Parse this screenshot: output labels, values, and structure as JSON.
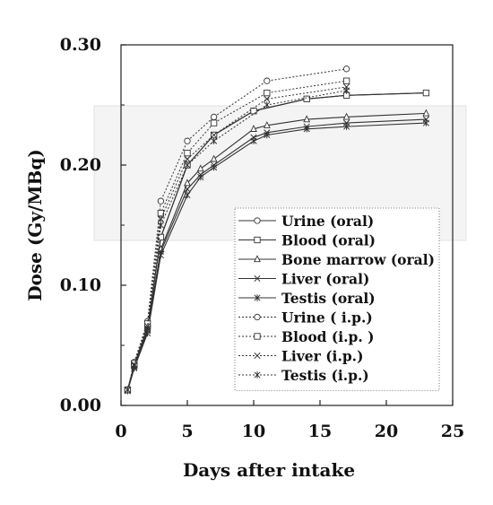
{
  "chart_data": {
    "type": "line",
    "xlabel": "Days after intake",
    "ylabel": "Dose (Gy/MBq)",
    "xlim": [
      0,
      25
    ],
    "ylim": [
      0,
      0.3
    ],
    "x_ticks": [
      "0",
      "5",
      "10",
      "15",
      "20",
      "25"
    ],
    "y_ticks": [
      "0.00",
      "0.10",
      "0.20",
      "0.30"
    ],
    "legend_position": "right-center",
    "grid": false,
    "series": [
      {
        "name": "Urine (oral)",
        "style": "solid",
        "marker": "circle",
        "x": [
          0.5,
          1,
          2,
          3,
          5,
          7,
          10,
          14,
          17,
          23
        ],
        "y": [
          0.013,
          0.034,
          0.065,
          0.14,
          0.2,
          0.225,
          0.245,
          0.255,
          0.258,
          0.26
        ]
      },
      {
        "name": "Blood (oral)",
        "style": "solid",
        "marker": "square",
        "x": [
          0.5,
          1,
          2,
          3,
          5,
          7,
          10,
          14,
          17,
          23
        ],
        "y": [
          0.013,
          0.034,
          0.065,
          0.14,
          0.2,
          0.225,
          0.245,
          0.255,
          0.258,
          0.26
        ]
      },
      {
        "name": "Bone marrow (oral)",
        "style": "solid",
        "marker": "triangle",
        "x": [
          0.5,
          1,
          2,
          3,
          5,
          6,
          7,
          10,
          11,
          14,
          17,
          23
        ],
        "y": [
          0.013,
          0.033,
          0.063,
          0.13,
          0.185,
          0.197,
          0.205,
          0.23,
          0.233,
          0.238,
          0.24,
          0.243
        ]
      },
      {
        "name": "Liver (oral)",
        "style": "solid",
        "marker": "x",
        "x": [
          0.5,
          1,
          2,
          3,
          5,
          6,
          7,
          10,
          11,
          14,
          17,
          23
        ],
        "y": [
          0.013,
          0.032,
          0.062,
          0.128,
          0.18,
          0.192,
          0.2,
          0.223,
          0.227,
          0.232,
          0.235,
          0.238
        ]
      },
      {
        "name": "Testis (oral)",
        "style": "solid",
        "marker": "asterisk",
        "x": [
          0.5,
          1,
          2,
          3,
          5,
          6,
          7,
          10,
          11,
          14,
          17,
          23
        ],
        "y": [
          0.012,
          0.031,
          0.06,
          0.125,
          0.175,
          0.19,
          0.198,
          0.22,
          0.225,
          0.23,
          0.232,
          0.235
        ]
      },
      {
        "name": "Urine ( i.p.)",
        "style": "dotted",
        "marker": "circle",
        "x": [
          0.5,
          1,
          2,
          3,
          5,
          7,
          11,
          17
        ],
        "y": [
          0.013,
          0.036,
          0.07,
          0.17,
          0.22,
          0.24,
          0.27,
          0.28
        ]
      },
      {
        "name": "Blood (i.p. )",
        "style": "dotted",
        "marker": "square",
        "x": [
          0.5,
          1,
          2,
          3,
          5,
          7,
          11,
          17
        ],
        "y": [
          0.013,
          0.035,
          0.068,
          0.16,
          0.21,
          0.235,
          0.26,
          0.27
        ]
      },
      {
        "name": "Liver (i.p.)",
        "style": "dotted",
        "marker": "x",
        "x": [
          0.5,
          1,
          2,
          3,
          5,
          7,
          11,
          17
        ],
        "y": [
          0.013,
          0.034,
          0.066,
          0.155,
          0.205,
          0.225,
          0.255,
          0.265
        ]
      },
      {
        "name": "Testis (i.p.)",
        "style": "dotted",
        "marker": "asterisk",
        "x": [
          0.5,
          1,
          2,
          3,
          5,
          7,
          11,
          17
        ],
        "y": [
          0.013,
          0.033,
          0.064,
          0.15,
          0.2,
          0.22,
          0.25,
          0.262
        ]
      }
    ]
  }
}
